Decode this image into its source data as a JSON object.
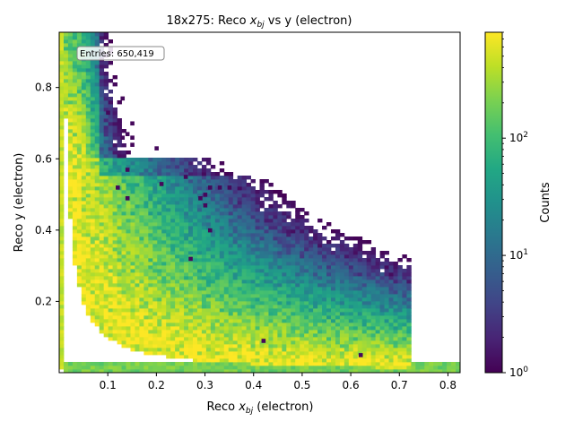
{
  "chart_data": {
    "type": "heatmap",
    "title_prefix": "18x275: Reco ",
    "title_var": "x",
    "title_sub": "bj",
    "title_suffix": " vs y (electron)",
    "xlabel_prefix": "Reco ",
    "xlabel_var": "x",
    "xlabel_sub": "bj",
    "xlabel_suffix": " (electron)",
    "ylabel": "Reco y (electron)",
    "colorbar_label": "Counts",
    "colorbar_scale": "log",
    "colorbar_range": [
      1,
      800
    ],
    "colorbar_ticks": [
      {
        "value": 1,
        "base": "10",
        "exp": "0"
      },
      {
        "value": 10,
        "base": "10",
        "exp": "1"
      },
      {
        "value": 100,
        "base": "10",
        "exp": "2"
      }
    ],
    "colormap": "viridis",
    "xlim": [
      0.0,
      0.825
    ],
    "ylim": [
      0.0,
      0.955
    ],
    "xticks": [
      "0.1",
      "0.2",
      "0.3",
      "0.4",
      "0.5",
      "0.6",
      "0.7",
      "0.8"
    ],
    "yticks": [
      "0.2",
      "0.4",
      "0.6",
      "0.8"
    ],
    "annotation": "Entries: 650,419",
    "populated_region": "y * x_bj ≳ 0.01 (Q² threshold band), dense near low x_bj",
    "sparse_outlier_bins": [
      [
        0.13,
        0.77
      ],
      [
        0.1,
        0.73
      ],
      [
        0.15,
        0.7
      ],
      [
        0.14,
        0.67
      ],
      [
        0.15,
        0.66
      ],
      [
        0.13,
        0.66
      ],
      [
        0.15,
        0.64
      ],
      [
        0.2,
        0.63
      ],
      [
        0.14,
        0.57
      ],
      [
        0.26,
        0.55
      ],
      [
        0.21,
        0.53
      ],
      [
        0.3,
        0.5
      ],
      [
        0.12,
        0.52
      ],
      [
        0.31,
        0.52
      ],
      [
        0.33,
        0.52
      ],
      [
        0.35,
        0.52
      ],
      [
        0.29,
        0.49
      ],
      [
        0.14,
        0.49
      ],
      [
        0.3,
        0.47
      ],
      [
        0.31,
        0.4
      ],
      [
        0.27,
        0.32
      ],
      [
        0.42,
        0.09
      ],
      [
        0.62,
        0.05
      ]
    ]
  },
  "colors": {
    "low": "#440154",
    "mid": "#21918c",
    "high": "#fde725"
  }
}
